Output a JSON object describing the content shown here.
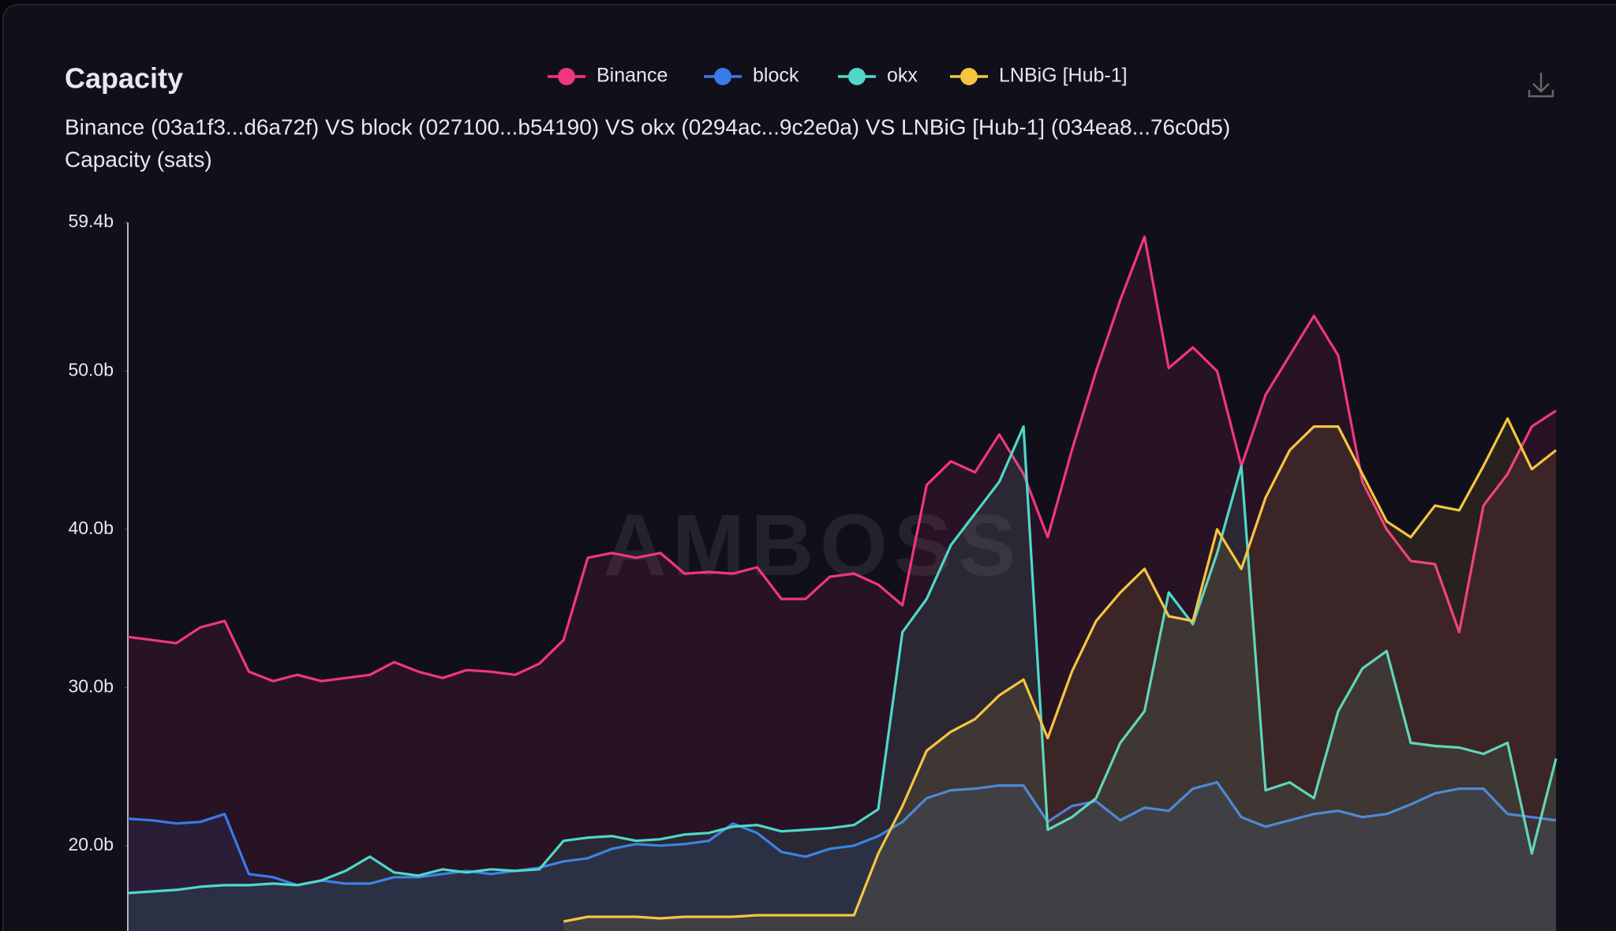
{
  "chart_data": {
    "type": "line",
    "title": "Capacity",
    "subtitle": "Binance (03a1f3...d6a72f) VS block (027100...b54190) VS okx (0294ac...9c2e0a) VS LNBiG [Hub-1] (034ea8...76c0d5)",
    "y_label": "Capacity (sats)",
    "watermark": "AMBOSS",
    "legend": "top",
    "area": true,
    "ylim": [
      14600000000.0,
      59400000000.0
    ],
    "yticks": [
      {
        "value": 20000000000.0,
        "label": "20.0b"
      },
      {
        "value": 30000000000.0,
        "label": "30.0b"
      },
      {
        "value": 40000000000.0,
        "label": "40.0b"
      },
      {
        "value": 50000000000.0,
        "label": "50.0b"
      },
      {
        "value": 59400000000.0,
        "label": "59.4b"
      }
    ],
    "series": [
      {
        "name": "Binance",
        "color": "#f0367f",
        "values": [
          33200000000.0,
          33000000000.0,
          32800000000.0,
          33800000000.0,
          34200000000.0,
          31000000000.0,
          30400000000.0,
          30800000000.0,
          30400000000.0,
          30600000000.0,
          30800000000.0,
          31600000000.0,
          31000000000.0,
          30600000000.0,
          31100000000.0,
          31000000000.0,
          30800000000.0,
          31500000000.0,
          33000000000.0,
          38200000000.0,
          38500000000.0,
          38200000000.0,
          38500000000.0,
          37200000000.0,
          37300000000.0,
          37200000000.0,
          37600000000.0,
          35600000000.0,
          35600000000.0,
          37000000000.0,
          37200000000.0,
          36500000000.0,
          35200000000.0,
          42800000000.0,
          44300000000.0,
          43600000000.0,
          46000000000.0,
          43500000000.0,
          39500000000.0,
          45000000000.0,
          50000000000.0,
          54500000000.0,
          58500000000.0,
          50200000000.0,
          51500000000.0,
          50000000000.0,
          44000000000.0,
          48500000000.0,
          51000000000.0,
          53500000000.0,
          51000000000.0,
          43000000000.0,
          40000000000.0,
          38000000000.0,
          37800000000.0,
          33500000000.0,
          41500000000.0,
          43500000000.0,
          46500000000.0,
          47500000000.0
        ]
      },
      {
        "name": "block",
        "color": "#3a7ae8",
        "values": [
          21700000000.0,
          21600000000.0,
          21400000000.0,
          21500000000.0,
          22000000000.0,
          18200000000.0,
          18000000000.0,
          17500000000.0,
          17800000000.0,
          17600000000.0,
          17600000000.0,
          18000000000.0,
          18000000000.0,
          18200000000.0,
          18400000000.0,
          18200000000.0,
          18400000000.0,
          18600000000.0,
          19000000000.0,
          19200000000.0,
          19800000000.0,
          20100000000.0,
          20000000000.0,
          20100000000.0,
          20300000000.0,
          21400000000.0,
          20800000000.0,
          19600000000.0,
          19300000000.0,
          19800000000.0,
          20000000000.0,
          20600000000.0,
          21500000000.0,
          23000000000.0,
          23500000000.0,
          23600000000.0,
          23800000000.0,
          23800000000.0,
          21500000000.0,
          22500000000.0,
          22800000000.0,
          21600000000.0,
          22400000000.0,
          22200000000.0,
          23600000000.0,
          24000000000.0,
          21800000000.0,
          21200000000.0,
          21600000000.0,
          22000000000.0,
          22200000000.0,
          21800000000.0,
          22000000000.0,
          22600000000.0,
          23300000000.0,
          23600000000.0,
          23600000000.0,
          22000000000.0,
          21800000000.0,
          21600000000.0
        ]
      },
      {
        "name": "okx",
        "color": "#4fd8c8",
        "values": [
          17000000000.0,
          17100000000.0,
          17200000000.0,
          17400000000.0,
          17500000000.0,
          17500000000.0,
          17600000000.0,
          17500000000.0,
          17800000000.0,
          18400000000.0,
          19300000000.0,
          18300000000.0,
          18100000000.0,
          18500000000.0,
          18300000000.0,
          18500000000.0,
          18400000000.0,
          18500000000.0,
          20300000000.0,
          20500000000.0,
          20600000000.0,
          20300000000.0,
          20400000000.0,
          20700000000.0,
          20800000000.0,
          21200000000.0,
          21300000000.0,
          20900000000.0,
          21000000000.0,
          21100000000.0,
          21300000000.0,
          22300000000.0,
          33500000000.0,
          35600000000.0,
          39000000000.0,
          41000000000.0,
          43000000000.0,
          46500000000.0,
          21000000000.0,
          21800000000.0,
          23000000000.0,
          26500000000.0,
          28500000000.0,
          36000000000.0,
          34000000000.0,
          38500000000.0,
          44000000000.0,
          23500000000.0,
          24000000000.0,
          23000000000.0,
          28500000000.0,
          31200000000.0,
          32300000000.0,
          26500000000.0,
          26300000000.0,
          26200000000.0,
          25800000000.0,
          26500000000.0,
          19500000000.0,
          25500000000.0
        ]
      },
      {
        "name": "LNBiG [Hub-1]",
        "color": "#f5c542",
        "values": [
          null,
          null,
          null,
          null,
          null,
          null,
          null,
          null,
          null,
          null,
          null,
          null,
          null,
          null,
          null,
          null,
          null,
          null,
          15200000000.0,
          15500000000.0,
          15500000000.0,
          15500000000.0,
          15400000000.0,
          15500000000.0,
          15500000000.0,
          15500000000.0,
          15600000000.0,
          15600000000.0,
          15600000000.0,
          15600000000.0,
          15600000000.0,
          19500000000.0,
          22500000000.0,
          26000000000.0,
          27200000000.0,
          28000000000.0,
          29500000000.0,
          30500000000.0,
          26800000000.0,
          31000000000.0,
          34200000000.0,
          36000000000.0,
          37500000000.0,
          34500000000.0,
          34200000000.0,
          40000000000.0,
          37500000000.0,
          42000000000.0,
          45000000000.0,
          46500000000.0,
          46500000000.0,
          43500000000.0,
          40500000000.0,
          39500000000.0,
          41500000000.0,
          41200000000.0,
          44000000000.0,
          47000000000.0,
          43800000000.0,
          45000000000.0
        ]
      }
    ]
  }
}
